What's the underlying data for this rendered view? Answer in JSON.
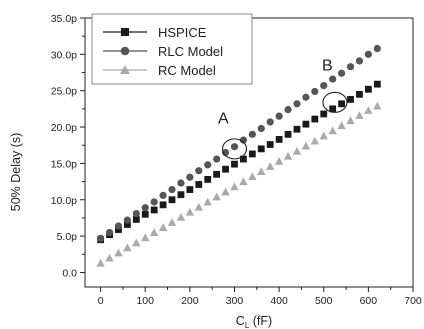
{
  "chart_data": {
    "type": "scatter",
    "xlabel_main": "C",
    "xlabel_sub": "L",
    "xlabel_unit": " (fF)",
    "ylabel": "50% Delay (s)",
    "xlim": [
      -35,
      700
    ],
    "ylim": [
      -2.0,
      35.0
    ],
    "x_ticks": [
      0,
      100,
      200,
      300,
      400,
      500,
      600,
      700
    ],
    "y_ticks": [
      {
        "value": 0.0,
        "label": "0.0"
      },
      {
        "value": 5.0,
        "label": "5.0p"
      },
      {
        "value": 10.0,
        "label": "10.0p"
      },
      {
        "value": 15.0,
        "label": "15.0p"
      },
      {
        "value": 20.0,
        "label": "20.0p"
      },
      {
        "value": 25.0,
        "label": "25.0p"
      },
      {
        "value": 30.0,
        "label": "30.0p"
      },
      {
        "value": 35.0,
        "label": "35.0p"
      }
    ],
    "legend_position": "top-left",
    "series": [
      {
        "name": "HSPICE",
        "marker": "square",
        "color": "#1a1a1a",
        "x": [
          0,
          20,
          40,
          60,
          80,
          100,
          120,
          140,
          160,
          180,
          200,
          220,
          240,
          260,
          280,
          300,
          320,
          340,
          360,
          380,
          400,
          420,
          440,
          460,
          480,
          500,
          520,
          540,
          560,
          580,
          600,
          620
        ],
        "y": [
          4.5,
          5.2,
          5.9,
          6.6,
          7.3,
          8.0,
          8.6,
          9.3,
          10.0,
          10.7,
          11.4,
          12.1,
          12.8,
          13.5,
          14.2,
          14.9,
          15.6,
          16.3,
          17.0,
          17.6,
          18.3,
          19.0,
          19.7,
          20.4,
          21.1,
          21.8,
          22.5,
          23.2,
          23.8,
          24.5,
          25.2,
          25.9
        ]
      },
      {
        "name": "RLC Model",
        "marker": "circle",
        "color": "#555555",
        "x": [
          0,
          20,
          40,
          60,
          80,
          100,
          120,
          140,
          160,
          180,
          200,
          220,
          240,
          260,
          280,
          300,
          320,
          340,
          360,
          380,
          400,
          420,
          440,
          460,
          480,
          500,
          520,
          540,
          560,
          580,
          600,
          620
        ],
        "y": [
          4.7,
          5.5,
          6.4,
          7.2,
          8.1,
          8.9,
          9.7,
          10.6,
          11.4,
          12.3,
          13.1,
          14.0,
          14.8,
          15.6,
          16.5,
          17.3,
          18.2,
          19.0,
          19.8,
          20.7,
          21.5,
          22.4,
          23.2,
          24.1,
          24.9,
          25.7,
          26.6,
          27.4,
          28.3,
          29.1,
          30.0,
          30.8
        ]
      },
      {
        "name": "RC Model",
        "marker": "triangle",
        "color": "#aaaaaa",
        "x": [
          0,
          20,
          40,
          60,
          80,
          100,
          120,
          140,
          160,
          180,
          200,
          220,
          240,
          260,
          280,
          300,
          320,
          340,
          360,
          380,
          400,
          420,
          440,
          460,
          480,
          500,
          520,
          540,
          560,
          580,
          600,
          620
        ],
        "y": [
          1.3,
          2.0,
          2.7,
          3.4,
          4.1,
          4.8,
          5.5,
          6.2,
          6.9,
          7.6,
          8.3,
          9.0,
          9.7,
          10.4,
          11.1,
          11.8,
          12.5,
          13.2,
          13.9,
          14.6,
          15.3,
          16.0,
          16.7,
          17.4,
          18.1,
          18.8,
          19.5,
          20.2,
          20.9,
          21.6,
          22.3,
          22.9
        ]
      }
    ],
    "annotations": [
      {
        "text": "A",
        "label_x": 275,
        "label_y": 20.5,
        "circle_x": 300,
        "circle_y": 17.0
      },
      {
        "text": "B",
        "label_x": 508,
        "label_y": 27.8,
        "circle_x": 525,
        "circle_y": 23.4
      }
    ]
  }
}
